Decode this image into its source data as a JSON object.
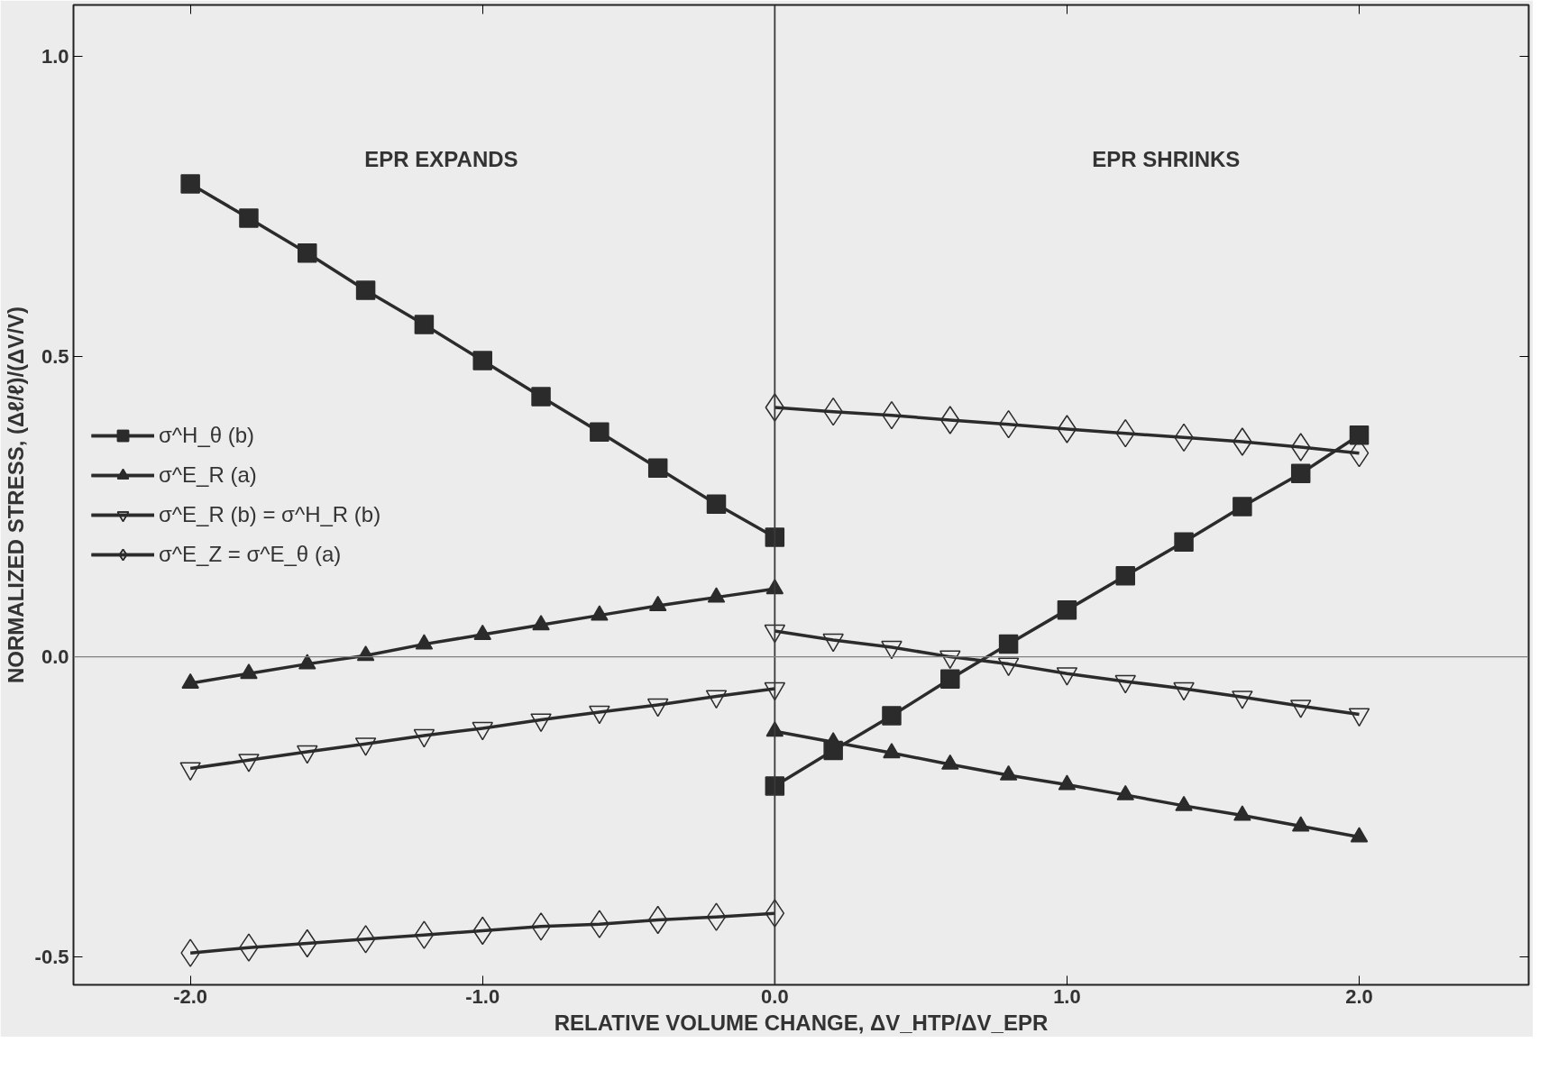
{
  "chart_data": {
    "type": "line",
    "xlabel": "RELATIVE VOLUME CHANGE, ΔV_HTP/ΔV_EPR",
    "ylabel": "NORMALIZED STRESS, (Δℓ/ℓ)/(ΔV/V)",
    "annotations": [
      "EPR EXPANDS",
      "EPR SHRINKS"
    ],
    "x": [
      -2.0,
      -1.8,
      -1.6,
      -1.4,
      -1.2,
      -1.0,
      -0.8,
      -0.6,
      -0.4,
      -0.2,
      0.0
    ],
    "series": [
      {
        "name": "σ^H_θ (b)",
        "color": "#2b2b2b",
        "marker": "square",
        "values": [
          0.787,
          0.73,
          0.672,
          0.61,
          0.553,
          0.493,
          0.433,
          0.374,
          0.314,
          0.254,
          0.199
        ]
      },
      {
        "color": "#2b2b2b",
        "marker": "square",
        "x": [
          0.0,
          0.2,
          0.4,
          0.6,
          0.8,
          1.0,
          1.2,
          1.4,
          1.6,
          1.8,
          2.0
        ],
        "values": [
          -0.215,
          -0.156,
          -0.098,
          -0.037,
          0.021,
          0.078,
          0.135,
          0.191,
          0.25,
          0.305,
          0.369
        ]
      },
      {
        "name": "σ^E_R (a)",
        "color": "#2b2b2b",
        "marker": "triangle",
        "values": [
          -0.044,
          -0.028,
          -0.012,
          0.002,
          0.021,
          0.037,
          0.053,
          0.069,
          0.085,
          0.099,
          0.113
        ]
      },
      {
        "color": "#2b2b2b",
        "marker": "triangle",
        "x": [
          0.0,
          0.2,
          0.4,
          0.6,
          0.8,
          1.0,
          1.2,
          1.4,
          1.6,
          1.8,
          2.0
        ],
        "values": [
          -0.124,
          -0.142,
          -0.16,
          -0.179,
          -0.197,
          -0.213,
          -0.23,
          -0.248,
          -0.264,
          -0.282,
          -0.3
        ]
      },
      {
        "name": "σ^E_R (b) = σ^H_R (b)",
        "color": "#2b2b2b",
        "marker": "triangle",
        "values": [
          -0.186,
          -0.172,
          -0.158,
          -0.145,
          -0.131,
          -0.119,
          -0.105,
          -0.092,
          -0.08,
          -0.066,
          -0.053
        ]
      },
      {
        "color": "#2b2b2b",
        "marker": "triangle",
        "x": [
          0.0,
          0.2,
          0.4,
          0.6,
          0.8,
          1.0,
          1.2,
          1.4,
          1.6,
          1.8,
          2.0
        ],
        "values": [
          0.043,
          0.028,
          0.016,
          0.0,
          -0.012,
          -0.028,
          -0.041,
          -0.053,
          -0.067,
          -0.082,
          -0.096
        ]
      },
      {
        "name": "σ^E_Z = σ^E_θ (a)",
        "color": "#2b2b2b",
        "marker": "diamond",
        "values": [
          -0.493,
          -0.484,
          -0.477,
          -0.47,
          -0.463,
          -0.456,
          -0.449,
          -0.445,
          -0.438,
          -0.433,
          -0.427
        ]
      },
      {
        "color": "#2b2b2b",
        "marker": "diamond",
        "x": [
          0.0,
          0.2,
          0.4,
          0.6,
          0.8,
          1.0,
          1.2,
          1.4,
          1.6,
          1.8,
          2.0
        ],
        "values": [
          0.415,
          0.408,
          0.402,
          0.394,
          0.387,
          0.379,
          0.372,
          0.365,
          0.358,
          0.349,
          0.339
        ]
      }
    ],
    "xlim": [
      -2.4,
      2.58
    ],
    "ylim": [
      -0.546,
      1.085
    ],
    "xticks": [
      {
        "value": -2,
        "label": "-2.0"
      },
      {
        "value": -1,
        "label": "-1.0"
      },
      {
        "value": 0,
        "label": "0.0"
      },
      {
        "value": 1,
        "label": "1.0"
      },
      {
        "value": 2,
        "label": "2.0"
      }
    ],
    "yticks": [
      {
        "value": -0.5,
        "label": "-0.5"
      },
      {
        "value": 0,
        "label": "0.0"
      },
      {
        "value": 0.5,
        "label": "0.5"
      },
      {
        "value": 1,
        "label": "1.0"
      }
    ],
    "ref_lines": [
      {
        "axis": "x",
        "value": 0,
        "label": null
      },
      {
        "axis": "y",
        "value": 0,
        "label": null
      }
    ],
    "grid": false,
    "legend": "left",
    "line_style": "solid"
  }
}
